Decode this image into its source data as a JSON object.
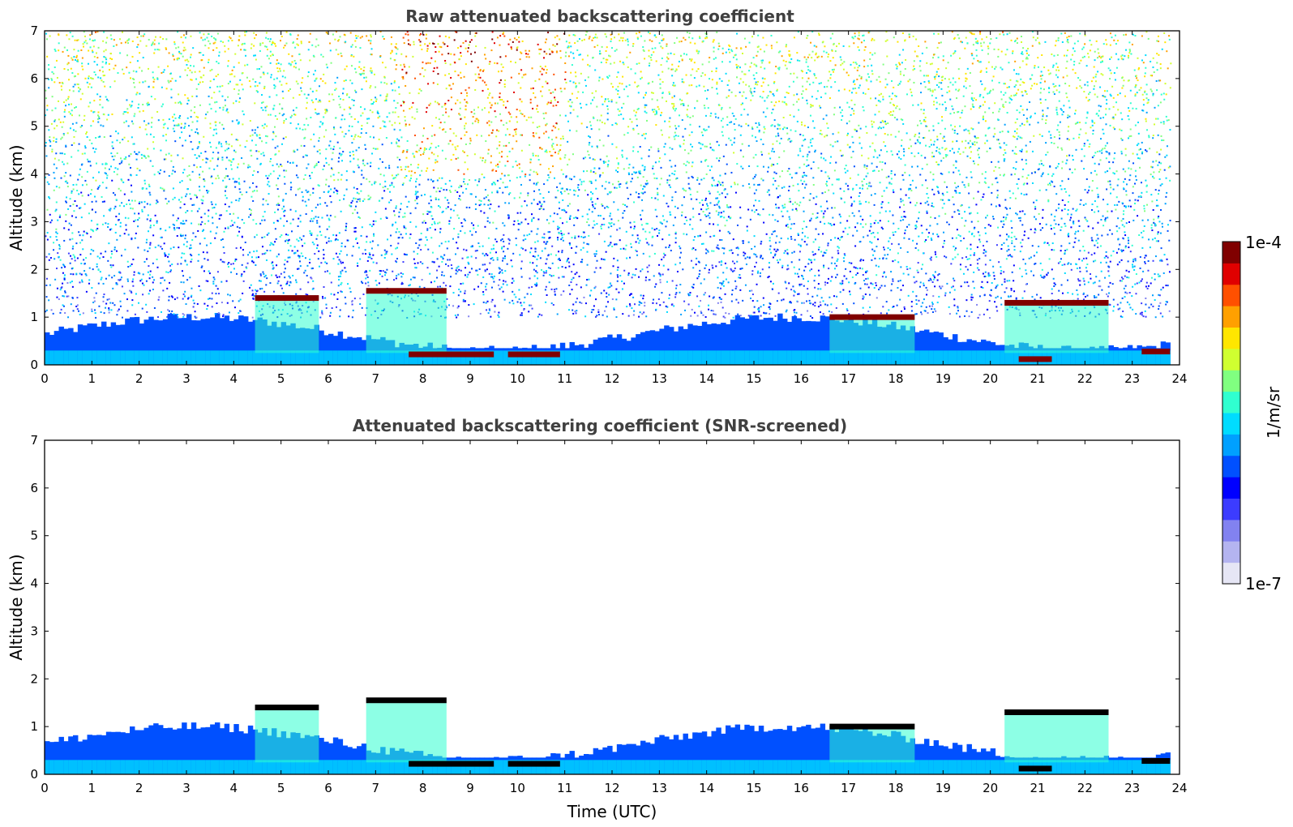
{
  "chart_data": {
    "type": "heatmap",
    "colormap": {
      "name": "jet-like",
      "scale": "log",
      "min_label": "1e-7",
      "max_label": "1e-4",
      "unit_label": "1/m/sr",
      "colors": [
        "#e6e6f5",
        "#b4b4f0",
        "#8282f0",
        "#3c3cff",
        "#0000ff",
        "#0050ff",
        "#00a0ff",
        "#00dcff",
        "#30ffd0",
        "#80ff80",
        "#d0ff30",
        "#ffe600",
        "#ffa000",
        "#ff5000",
        "#e00000",
        "#800000"
      ]
    },
    "panels": [
      {
        "key": "raw",
        "title": "Raw attenuated backscattering coefficient",
        "ylabel": "Altitude (km)",
        "xlabel": "",
        "xlim": [
          0,
          24
        ],
        "ylim": [
          0,
          7
        ],
        "xticks": [
          "0",
          "1",
          "2",
          "3",
          "4",
          "5",
          "6",
          "7",
          "8",
          "9",
          "10",
          "11",
          "12",
          "13",
          "14",
          "15",
          "16",
          "17",
          "18",
          "19",
          "20",
          "21",
          "22",
          "23",
          "24"
        ],
        "yticks": [
          "0",
          "1",
          "2",
          "3",
          "4",
          "5",
          "6",
          "7"
        ],
        "grid": false,
        "noise": true,
        "cloud_layers": [
          {
            "x0": 4.45,
            "x1": 5.8,
            "alt": 1.4
          },
          {
            "x0": 6.8,
            "x1": 8.5,
            "alt": 1.55
          },
          {
            "x0": 7.7,
            "x1": 9.5,
            "alt": 0.22
          },
          {
            "x0": 9.8,
            "x1": 10.9,
            "alt": 0.22
          },
          {
            "x0": 16.6,
            "x1": 18.4,
            "alt": 1.0
          },
          {
            "x0": 20.3,
            "x1": 22.5,
            "alt": 1.3
          },
          {
            "x0": 20.6,
            "x1": 21.3,
            "alt": 0.12
          },
          {
            "x0": 23.2,
            "x1": 23.8,
            "alt": 0.28
          }
        ]
      },
      {
        "key": "snr",
        "title": "Attenuated backscattering coefficient (SNR-screened)",
        "ylabel": "Altitude (km)",
        "xlabel": "Time (UTC)",
        "xlim": [
          0,
          24
        ],
        "ylim": [
          0,
          7
        ],
        "xticks": [
          "0",
          "1",
          "2",
          "3",
          "4",
          "5",
          "6",
          "7",
          "8",
          "9",
          "10",
          "11",
          "12",
          "13",
          "14",
          "15",
          "16",
          "17",
          "18",
          "19",
          "20",
          "21",
          "22",
          "23",
          "24"
        ],
        "yticks": [
          "0",
          "1",
          "2",
          "3",
          "4",
          "5",
          "6",
          "7"
        ],
        "grid": false,
        "noise": false,
        "cloud_layers": [
          {
            "x0": 4.45,
            "x1": 5.8,
            "alt": 1.4
          },
          {
            "x0": 6.8,
            "x1": 8.5,
            "alt": 1.55
          },
          {
            "x0": 7.7,
            "x1": 9.5,
            "alt": 0.22
          },
          {
            "x0": 9.8,
            "x1": 10.9,
            "alt": 0.22
          },
          {
            "x0": 16.6,
            "x1": 18.4,
            "alt": 1.0
          },
          {
            "x0": 20.3,
            "x1": 22.5,
            "alt": 1.3
          },
          {
            "x0": 20.6,
            "x1": 21.3,
            "alt": 0.12
          },
          {
            "x0": 23.2,
            "x1": 23.8,
            "alt": 0.28
          }
        ]
      }
    ]
  }
}
